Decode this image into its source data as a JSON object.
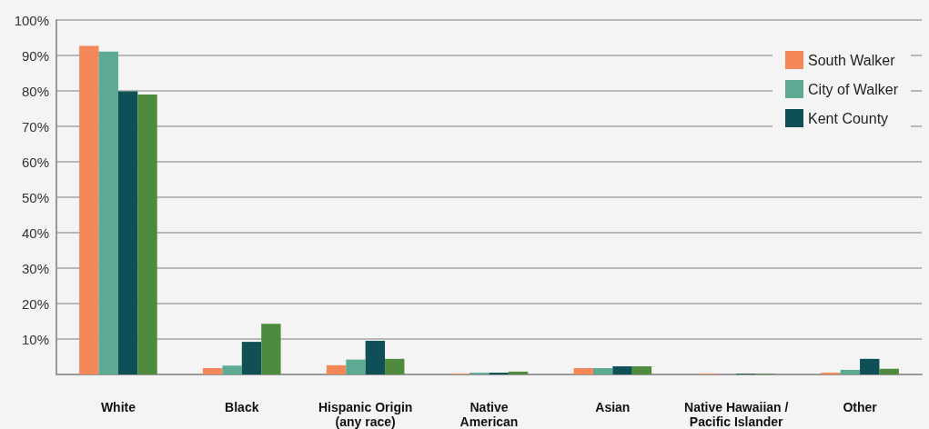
{
  "chart_data": {
    "type": "bar",
    "categories": [
      "White",
      "Black",
      "Hispanic Origin\n(any race)",
      "Native\nAmerican",
      "Asian",
      "Native Hawaiian /\nPacific Islander",
      "Other"
    ],
    "series": [
      {
        "name": "South Walker",
        "color": "#f48858",
        "values": [
          92.7,
          1.8,
          2.6,
          0.2,
          1.8,
          0.2,
          0.5
        ]
      },
      {
        "name": "City of Walker",
        "color": "#5caa93",
        "values": [
          91.1,
          2.5,
          4.2,
          0.5,
          1.8,
          0,
          1.3
        ]
      },
      {
        "name": "Kent County",
        "color": "#0e5056",
        "values": [
          79.9,
          9.2,
          9.5,
          0.5,
          2.3,
          0.2,
          4.4
        ]
      },
      {
        "color": "#4f8b3f",
        "values": [
          79.0,
          14.3,
          4.4,
          0.8,
          2.3,
          0.2,
          1.6
        ]
      }
    ],
    "ylim": [
      0,
      100
    ],
    "yticks": [
      {
        "value": 0,
        "label": null
      },
      {
        "value": 10,
        "label": "10%"
      },
      {
        "value": 20,
        "label": "20%"
      },
      {
        "value": 30,
        "label": "30%"
      },
      {
        "value": 40,
        "label": "40%"
      },
      {
        "value": 50,
        "label": "50%"
      },
      {
        "value": 60,
        "label": "60%"
      },
      {
        "value": 70,
        "label": "70%"
      },
      {
        "value": 80,
        "label": "80%"
      },
      {
        "value": 90,
        "label": "90%"
      },
      {
        "value": 100,
        "label": "100%"
      }
    ],
    "grid": "y",
    "legend": "top right"
  }
}
